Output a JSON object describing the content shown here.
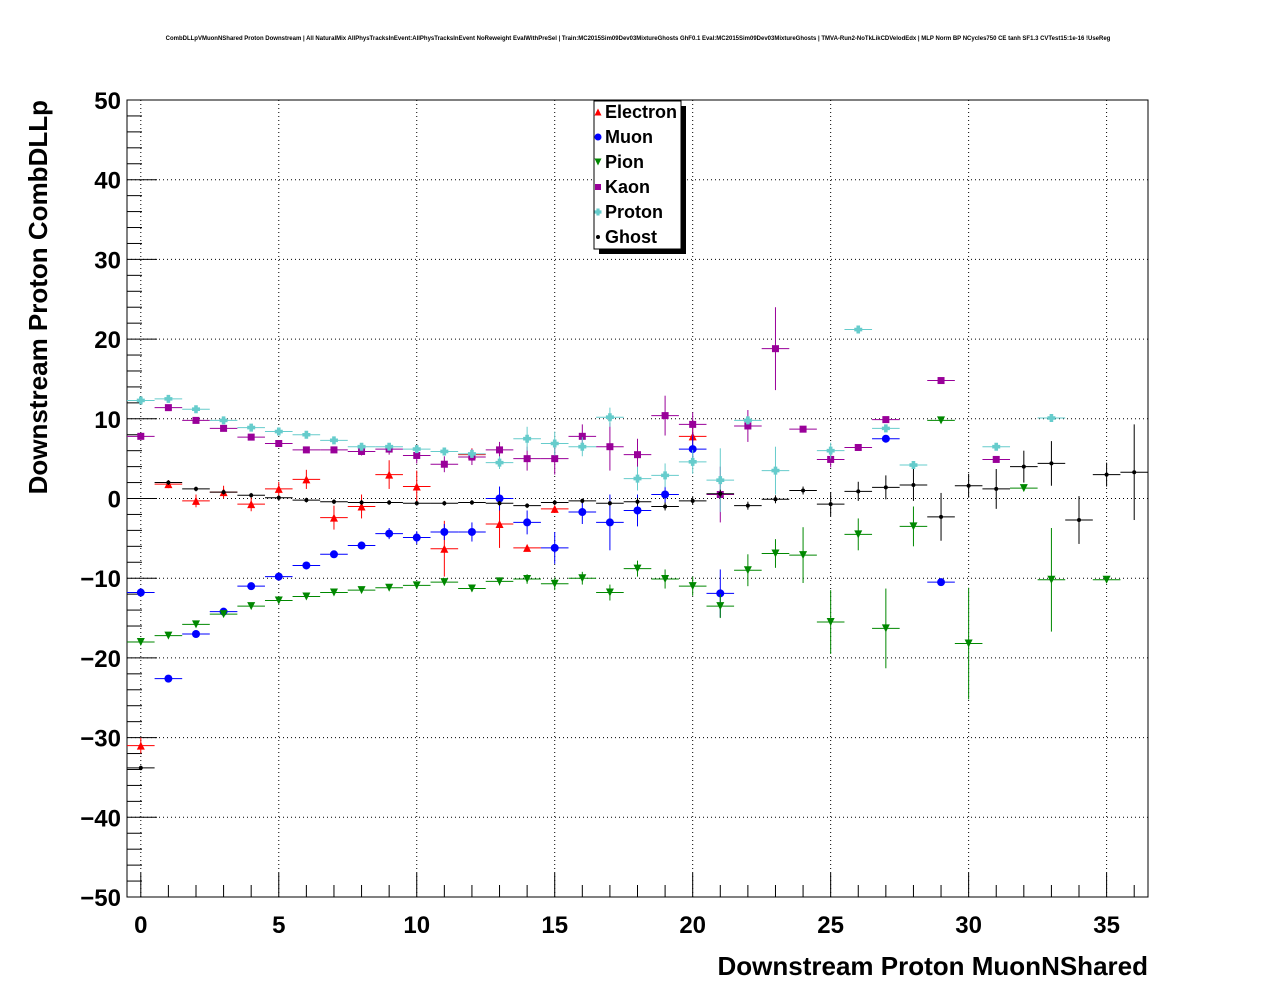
{
  "chart_data": {
    "type": "scatter",
    "title": "CombDLLpVMuonNShared Proton Downstream | All NaturalMix AllPhysTracksInEvent:AllPhysTracksInEvent NoReweight EvalWithPreSel | Train:MC2015Sim09Dev03MixtureGhosts GhF0.1 Eval:MC2015Sim09Dev03MixtureGhosts | TMVA-Run2-NoTkLikCDVelodEdx | MLP Norm BP NCycles750 CE tanh SF1.3 CVTest15:1e-16 !UseReg",
    "xlabel": "Downstream Proton MuonNShared",
    "ylabel": "Downstream Proton CombDLLp",
    "xlim": [
      -0.5,
      36.5
    ],
    "ylim": [
      -50,
      50
    ],
    "xticks": [
      0,
      5,
      10,
      15,
      20,
      25,
      30,
      35
    ],
    "yticks": [
      -50,
      -40,
      -30,
      -20,
      -10,
      0,
      10,
      20,
      30,
      40,
      50
    ],
    "grid": true,
    "legend_position": "top-center",
    "series": [
      {
        "name": "Electron",
        "color": "#ff0000",
        "marker": "triangle-up",
        "points": [
          [
            0,
            -31,
            1
          ],
          [
            1,
            1.8,
            0.5
          ],
          [
            2,
            -0.3,
            0.8
          ],
          [
            3,
            0.8,
            0.8
          ],
          [
            4,
            -0.7,
            0.9
          ],
          [
            5,
            1.2,
            0.9
          ],
          [
            6,
            2.4,
            1.2
          ],
          [
            7,
            -2.4,
            1.5
          ],
          [
            8,
            -1,
            1.5
          ],
          [
            9,
            3,
            1.8
          ],
          [
            10,
            1.5,
            2
          ],
          [
            11,
            -6.3,
            3.5
          ],
          [
            12,
            5.5,
            0.8
          ],
          [
            13,
            -3.2,
            3
          ],
          [
            14,
            -6.2,
            0.3
          ],
          [
            15,
            -1.3,
            0.3
          ],
          [
            20,
            7.8,
            1
          ]
        ]
      },
      {
        "name": "Muon",
        "color": "#0000ff",
        "marker": "circle",
        "points": [
          [
            0,
            -11.8,
            0.3
          ],
          [
            1,
            -22.6,
            0.3
          ],
          [
            2,
            -17,
            0.3
          ],
          [
            3,
            -14.2,
            0.3
          ],
          [
            4,
            -11,
            0.3
          ],
          [
            5,
            -9.8,
            0.3
          ],
          [
            6,
            -8.4,
            0.3
          ],
          [
            7,
            -7,
            0.4
          ],
          [
            8,
            -5.9,
            0.5
          ],
          [
            9,
            -4.4,
            0.7
          ],
          [
            10,
            -4.9,
            0.8
          ],
          [
            11,
            -4.2,
            1
          ],
          [
            12,
            -4.2,
            1.2
          ],
          [
            13,
            0,
            1.5
          ],
          [
            14,
            -3,
            1.5
          ],
          [
            15,
            -6.2,
            2
          ],
          [
            16,
            -1.7,
            1.5
          ],
          [
            17,
            -3,
            3.5
          ],
          [
            18,
            -1.5,
            2
          ],
          [
            19,
            0.5,
            1
          ],
          [
            20,
            6.2,
            2
          ],
          [
            21,
            -11.9,
            3
          ],
          [
            27,
            7.5,
            0.3
          ],
          [
            29,
            -10.5,
            0.3
          ]
        ]
      },
      {
        "name": "Pion",
        "color": "#008800",
        "marker": "triangle-down",
        "points": [
          [
            0,
            -18,
            0.3
          ],
          [
            1,
            -17.2,
            0.3
          ],
          [
            2,
            -15.8,
            0.3
          ],
          [
            3,
            -14.5,
            0.3
          ],
          [
            4,
            -13.5,
            0.3
          ],
          [
            5,
            -12.8,
            0.3
          ],
          [
            6,
            -12.3,
            0.3
          ],
          [
            7,
            -11.8,
            0.3
          ],
          [
            8,
            -11.5,
            0.3
          ],
          [
            9,
            -11.2,
            0.3
          ],
          [
            10,
            -10.9,
            0.4
          ],
          [
            11,
            -10.5,
            0.4
          ],
          [
            12,
            -11.3,
            0.4
          ],
          [
            13,
            -10.4,
            0.5
          ],
          [
            14,
            -10.1,
            0.6
          ],
          [
            15,
            -10.7,
            0.8
          ],
          [
            16,
            -10,
            0.8
          ],
          [
            17,
            -11.8,
            1
          ],
          [
            18,
            -8.8,
            1
          ],
          [
            19,
            -10.1,
            1.2
          ],
          [
            20,
            -11,
            1.2
          ],
          [
            21,
            -13.5,
            1.5
          ],
          [
            22,
            -9,
            2
          ],
          [
            23,
            -6.9,
            1.8
          ],
          [
            24,
            -7.1,
            3.5
          ],
          [
            25,
            -15.5,
            4
          ],
          [
            26,
            -4.5,
            2
          ],
          [
            27,
            -16.3,
            5
          ],
          [
            28,
            -3.5,
            2.5
          ],
          [
            29,
            9.8,
            0.3
          ],
          [
            30,
            -18.2,
            7
          ],
          [
            32,
            1.3,
            0.3
          ],
          [
            33,
            -10.2,
            6.5
          ],
          [
            35,
            -10.2,
            0.3
          ]
        ]
      },
      {
        "name": "Kaon",
        "color": "#990099",
        "marker": "square",
        "points": [
          [
            0,
            7.8,
            0.3
          ],
          [
            1,
            11.4,
            0.3
          ],
          [
            2,
            9.8,
            0.3
          ],
          [
            3,
            8.8,
            0.3
          ],
          [
            4,
            7.7,
            0.3
          ],
          [
            5,
            6.9,
            0.3
          ],
          [
            6,
            6.1,
            0.3
          ],
          [
            7,
            6.1,
            0.4
          ],
          [
            8,
            5.9,
            0.5
          ],
          [
            9,
            6.2,
            0.7
          ],
          [
            10,
            5.4,
            1
          ],
          [
            11,
            4.3,
            1
          ],
          [
            12,
            5.2,
            1
          ],
          [
            13,
            6.1,
            1
          ],
          [
            14,
            5,
            1.5
          ],
          [
            15,
            5,
            2
          ],
          [
            16,
            7.8,
            1.5
          ],
          [
            17,
            6.5,
            3
          ],
          [
            18,
            5.5,
            2
          ],
          [
            19,
            10.4,
            2.5
          ],
          [
            20,
            9.3,
            1.5
          ],
          [
            21,
            0.5,
            3.5
          ],
          [
            22,
            9.1,
            2
          ],
          [
            23,
            18.8,
            5.2
          ],
          [
            24,
            8.7,
            0.3
          ],
          [
            25,
            4.9,
            1
          ],
          [
            26,
            6.4,
            0.3
          ],
          [
            27,
            9.9,
            0.3
          ],
          [
            29,
            14.8,
            0.3
          ],
          [
            31,
            4.9,
            0.3
          ]
        ]
      },
      {
        "name": "Proton",
        "color": "#66cccc",
        "marker": "cross",
        "points": [
          [
            0,
            12.3,
            0.3
          ],
          [
            1,
            12.5,
            0.3
          ],
          [
            2,
            11.2,
            0.3
          ],
          [
            3,
            9.8,
            0.3
          ],
          [
            4,
            8.9,
            0.3
          ],
          [
            5,
            8.4,
            0.3
          ],
          [
            6,
            8,
            0.3
          ],
          [
            7,
            7.3,
            0.3
          ],
          [
            8,
            6.5,
            0.3
          ],
          [
            9,
            6.5,
            0.3
          ],
          [
            10,
            6.2,
            0.3
          ],
          [
            11,
            5.9,
            0.4
          ],
          [
            12,
            5.6,
            0.5
          ],
          [
            13,
            4.5,
            0.8
          ],
          [
            14,
            7.5,
            1.5
          ],
          [
            15,
            6.9,
            1.5
          ],
          [
            16,
            6.5,
            1.2
          ],
          [
            17,
            10.2,
            1.2
          ],
          [
            18,
            2.5,
            1.5
          ],
          [
            19,
            2.9,
            1.5
          ],
          [
            20,
            4.6,
            1.5
          ],
          [
            21,
            2.3,
            4
          ],
          [
            22,
            9.8,
            0.5
          ],
          [
            23,
            3.5,
            3
          ],
          [
            25,
            6,
            1
          ],
          [
            26,
            21.2,
            0.3
          ],
          [
            27,
            8.8,
            0.3
          ],
          [
            28,
            4.2,
            0.3
          ],
          [
            31,
            6.5,
            0.3
          ],
          [
            33,
            10.1,
            0.3
          ]
        ]
      },
      {
        "name": "Ghost",
        "color": "#000000",
        "marker": "dot",
        "points": [
          [
            0,
            -33.8,
            0.3
          ],
          [
            1,
            2,
            0.3
          ],
          [
            2,
            1.2,
            0.3
          ],
          [
            3,
            0.8,
            0.3
          ],
          [
            4,
            0.4,
            0.3
          ],
          [
            5,
            0.1,
            0.3
          ],
          [
            6,
            -0.2,
            0.3
          ],
          [
            7,
            -0.4,
            0.3
          ],
          [
            8,
            -0.5,
            0.3
          ],
          [
            9,
            -0.5,
            0.3
          ],
          [
            10,
            -0.6,
            0.3
          ],
          [
            11,
            -0.6,
            0.3
          ],
          [
            12,
            -0.5,
            0.3
          ],
          [
            13,
            -0.6,
            0.3
          ],
          [
            14,
            -0.9,
            0.3
          ],
          [
            15,
            -0.5,
            0.3
          ],
          [
            16,
            -0.3,
            0.3
          ],
          [
            17,
            -0.6,
            0.3
          ],
          [
            18,
            -0.4,
            0.5
          ],
          [
            19,
            -1,
            0.5
          ],
          [
            20,
            -0.3,
            0.5
          ],
          [
            21,
            0.6,
            0.5
          ],
          [
            22,
            -0.9,
            0.5
          ],
          [
            23,
            -0.1,
            0.5
          ],
          [
            24,
            1,
            0.5
          ],
          [
            25,
            -0.7,
            1.5
          ],
          [
            26,
            0.9,
            1.2
          ],
          [
            27,
            1.4,
            1.5
          ],
          [
            28,
            1.7,
            2
          ],
          [
            29,
            -2.3,
            3
          ],
          [
            30,
            1.6,
            1.5
          ],
          [
            31,
            1.2,
            2.5
          ],
          [
            32,
            4,
            2
          ],
          [
            33,
            4.4,
            2.8
          ],
          [
            34,
            -2.7,
            3
          ],
          [
            35,
            3,
            1.5
          ],
          [
            36,
            3.3,
            6
          ]
        ]
      }
    ]
  }
}
